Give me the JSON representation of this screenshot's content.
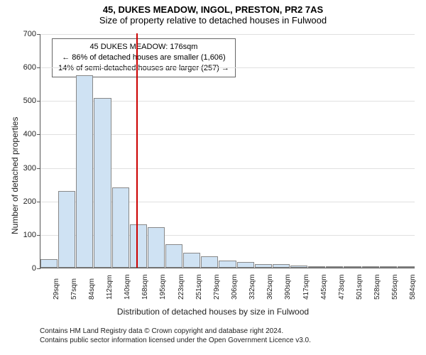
{
  "title": "45, DUKES MEADOW, INGOL, PRESTON, PR2 7AS",
  "subtitle": "Size of property relative to detached houses in Fulwood",
  "ylabel": "Number of detached properties",
  "xlabel": "Distribution of detached houses by size in Fulwood",
  "chart": {
    "type": "histogram",
    "ylim": [
      0,
      700
    ],
    "ytick_step": 100,
    "bar_fill": "#cfe2f3",
    "bar_border": "#888888",
    "grid_color": "#e0e0e0",
    "background": "#ffffff",
    "marker_color": "#cc0000",
    "bars": [
      {
        "label": "29sqm",
        "value": 25
      },
      {
        "label": "57sqm",
        "value": 230
      },
      {
        "label": "84sqm",
        "value": 575
      },
      {
        "label": "112sqm",
        "value": 508
      },
      {
        "label": "140sqm",
        "value": 240
      },
      {
        "label": "168sqm",
        "value": 130
      },
      {
        "label": "195sqm",
        "value": 120
      },
      {
        "label": "223sqm",
        "value": 70
      },
      {
        "label": "251sqm",
        "value": 45
      },
      {
        "label": "279sqm",
        "value": 33
      },
      {
        "label": "306sqm",
        "value": 22
      },
      {
        "label": "332sqm",
        "value": 18
      },
      {
        "label": "362sqm",
        "value": 10
      },
      {
        "label": "390sqm",
        "value": 10
      },
      {
        "label": "417sqm",
        "value": 6
      },
      {
        "label": "445sqm",
        "value": 5
      },
      {
        "label": "473sqm",
        "value": 3
      },
      {
        "label": "501sqm",
        "value": 2
      },
      {
        "label": "528sqm",
        "value": 2
      },
      {
        "label": "556sqm",
        "value": 1
      },
      {
        "label": "584sqm",
        "value": 1
      }
    ],
    "marker_index_after": 5,
    "annotation": {
      "line1": "45 DUKES MEADOW: 176sqm",
      "line2": "← 86% of detached houses are smaller (1,606)",
      "line3": "14% of semi-detached houses are larger (257) →"
    }
  },
  "footer": {
    "line1": "Contains HM Land Registry data © Crown copyright and database right 2024.",
    "line2": "Contains public sector information licensed under the Open Government Licence v3.0."
  }
}
